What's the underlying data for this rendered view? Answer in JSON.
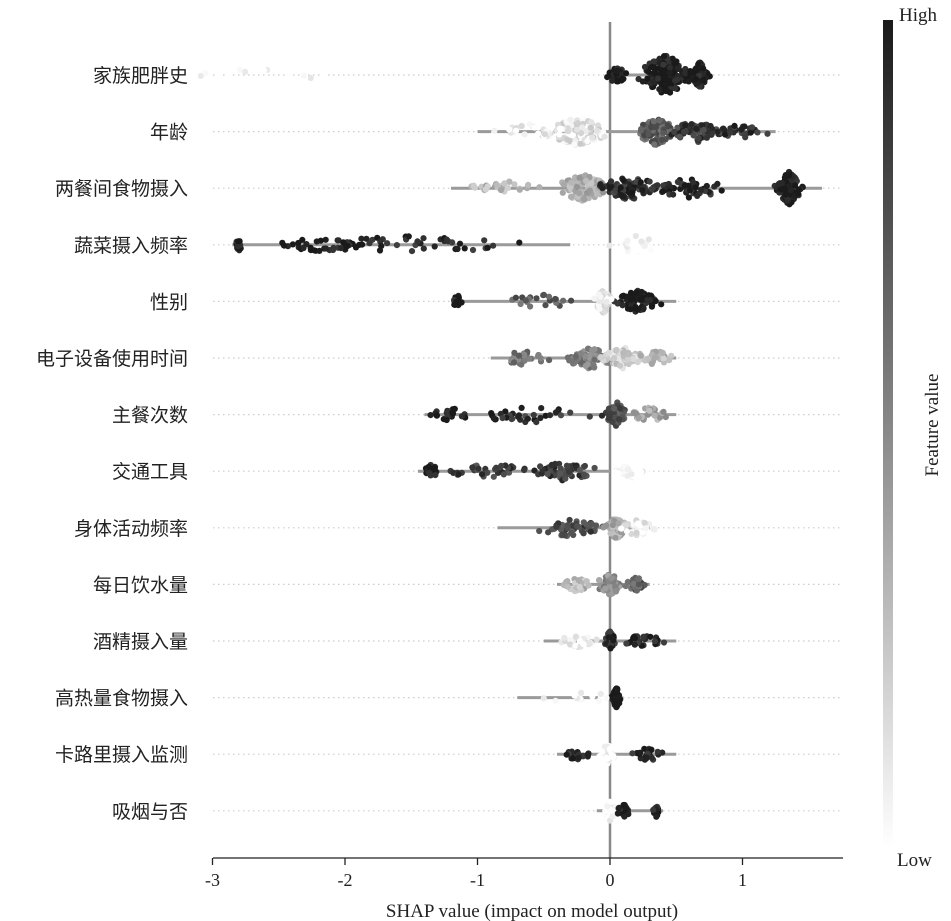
{
  "chart_data": {
    "type": "scatter",
    "subtype": "shap-beeswarm-summary",
    "xlabel": "SHAP value (impact on model output)",
    "xlim": [
      -3,
      1.8
    ],
    "xticks": [
      -3,
      -2,
      -1,
      0,
      1
    ],
    "xtick_labels": [
      "-3",
      "-2",
      "-1",
      "0",
      "1"
    ],
    "colorbar": {
      "label": "Feature value",
      "high": "High",
      "low": "Low",
      "high_color": "#1a1a1a",
      "low_color": "#ffffff"
    },
    "zero_line_color": "#888888",
    "features": [
      {
        "name": "家族肥胖史",
        "spans": [
          [
            0.0,
            0.75
          ]
        ],
        "clusters": [
          [
            0.42,
            0.16,
            1.0,
            2.6
          ],
          [
            0.68,
            0.05,
            1.0,
            1.4
          ],
          [
            0.05,
            0.06,
            1.0,
            0.6
          ],
          [
            -2.6,
            0.7,
            0.0,
            0.2
          ]
        ]
      },
      {
        "name": "年龄",
        "spans": [
          [
            -1.0,
            1.25
          ]
        ],
        "clusters": [
          [
            -0.25,
            0.18,
            0.12,
            1.6
          ],
          [
            0.35,
            0.12,
            0.7,
            1.5
          ],
          [
            0.65,
            0.15,
            0.85,
            1.0
          ],
          [
            1.0,
            0.15,
            0.9,
            0.4
          ],
          [
            -0.6,
            0.2,
            0.05,
            0.5
          ]
        ]
      },
      {
        "name": "两餐间食物摄入",
        "spans": [
          [
            -1.2,
            1.6
          ]
        ],
        "clusters": [
          [
            -0.2,
            0.15,
            0.35,
            1.6
          ],
          [
            0.15,
            0.2,
            0.9,
            1.2
          ],
          [
            0.6,
            0.25,
            0.95,
            0.8
          ],
          [
            1.35,
            0.07,
            1.0,
            2.0
          ],
          [
            -0.8,
            0.2,
            0.3,
            0.4
          ]
        ]
      },
      {
        "name": "蔬菜摄入频率",
        "spans": [
          [
            -2.85,
            -0.3
          ]
        ],
        "clusters": [
          [
            -1.5,
            0.7,
            0.95,
            0.7
          ],
          [
            -2.2,
            0.25,
            1.0,
            0.4
          ],
          [
            -2.8,
            0.02,
            1.0,
            0.2
          ],
          [
            0.2,
            0.15,
            0.0,
            0.7
          ]
        ]
      },
      {
        "name": "性别",
        "spans": [
          [
            -1.2,
            0.5
          ]
        ],
        "clusters": [
          [
            0.2,
            0.12,
            1.0,
            1.1
          ],
          [
            -0.05,
            0.05,
            0.1,
            1.1
          ],
          [
            -0.5,
            0.25,
            0.7,
            0.3
          ],
          [
            -1.15,
            0.03,
            1.0,
            0.2
          ]
        ]
      },
      {
        "name": "电子设备使用时间",
        "spans": [
          [
            -0.9,
            0.5
          ]
        ],
        "clusters": [
          [
            -0.15,
            0.15,
            0.55,
            1.0
          ],
          [
            0.1,
            0.12,
            0.2,
            1.0
          ],
          [
            -0.65,
            0.15,
            0.6,
            0.4
          ],
          [
            0.35,
            0.1,
            0.3,
            0.4
          ]
        ]
      },
      {
        "name": "主餐次数",
        "spans": [
          [
            -1.4,
            0.5
          ]
        ],
        "clusters": [
          [
            0.05,
            0.06,
            0.75,
            1.3
          ],
          [
            -0.6,
            0.4,
            0.9,
            0.5
          ],
          [
            -1.2,
            0.12,
            1.0,
            0.3
          ],
          [
            0.3,
            0.12,
            0.4,
            0.4
          ]
        ]
      },
      {
        "name": "交通工具",
        "spans": [
          [
            -1.45,
            0.0
          ]
        ],
        "clusters": [
          [
            -0.35,
            0.2,
            0.85,
            0.8
          ],
          [
            -0.9,
            0.25,
            0.85,
            0.5
          ],
          [
            -1.35,
            0.05,
            1.0,
            0.25
          ],
          [
            0.15,
            0.1,
            0.0,
            0.6
          ]
        ]
      },
      {
        "name": "身体活动频率",
        "spans": [
          [
            -0.85,
            0.3
          ]
        ],
        "clusters": [
          [
            -0.3,
            0.2,
            0.8,
            0.7
          ],
          [
            0.05,
            0.06,
            0.35,
            1.0
          ],
          [
            0.2,
            0.1,
            0.1,
            0.5
          ]
        ]
      },
      {
        "name": "每日饮水量",
        "spans": [
          [
            -0.4,
            0.3
          ]
        ],
        "clusters": [
          [
            0.0,
            0.08,
            0.5,
            0.9
          ],
          [
            -0.25,
            0.1,
            0.3,
            0.4
          ],
          [
            0.2,
            0.06,
            0.7,
            0.4
          ]
        ]
      },
      {
        "name": "酒精摄入量",
        "spans": [
          [
            -0.5,
            0.5
          ]
        ],
        "clusters": [
          [
            0.0,
            0.03,
            0.9,
            0.8
          ],
          [
            0.25,
            0.12,
            0.95,
            0.4
          ],
          [
            -0.25,
            0.1,
            0.05,
            0.4
          ]
        ]
      },
      {
        "name": "高热量食物摄入",
        "spans": [
          [
            -0.7,
            0.1
          ]
        ],
        "clusters": [
          [
            0.05,
            0.025,
            1.0,
            0.9
          ],
          [
            -0.2,
            0.25,
            0.0,
            0.2
          ]
        ]
      },
      {
        "name": "卡路里摄入监测",
        "spans": [
          [
            -0.4,
            0.5
          ]
        ],
        "clusters": [
          [
            0.3,
            0.12,
            0.95,
            0.4
          ],
          [
            -0.25,
            0.08,
            0.95,
            0.25
          ],
          [
            -0.02,
            0.05,
            0.0,
            0.8
          ]
        ]
      },
      {
        "name": "吸烟与否",
        "spans": [
          [
            -0.1,
            0.4
          ]
        ],
        "clusters": [
          [
            0.0,
            0.03,
            0.0,
            0.8
          ],
          [
            0.1,
            0.04,
            1.0,
            0.3
          ],
          [
            0.35,
            0.02,
            1.0,
            0.2
          ]
        ]
      }
    ]
  }
}
